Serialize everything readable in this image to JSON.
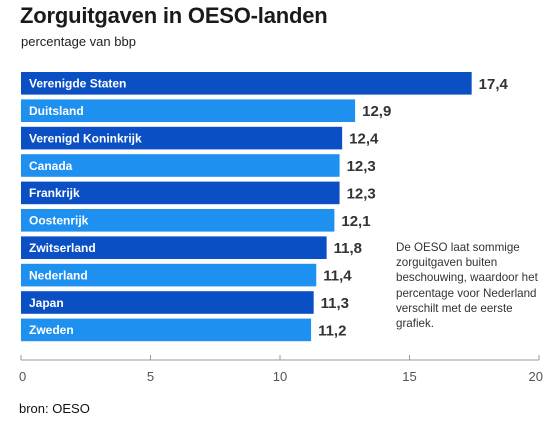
{
  "title": "Zorguitgaven in OESO-landen",
  "subtitle": "percentage van bbp",
  "annotation": "De OESO laat sommige zorguitgaven buiten beschouwing, waardoor het percentage voor Nederland verschilt met de eerste grafiek.",
  "source": "bron: OESO",
  "colors": {
    "dark": "#0a4fc4",
    "light": "#1e90f0",
    "label_text": "#ffffff",
    "value_text": "#333333",
    "axis": "#999999"
  },
  "chart_data": {
    "type": "bar",
    "orientation": "horizontal",
    "categories": [
      "Verenigde Staten",
      "Duitsland",
      "Verenigd Koninkrijk",
      "Canada",
      "Frankrijk",
      "Oostenrijk",
      "Zwitserland",
      "Nederland",
      "Japan",
      "Zweden"
    ],
    "values": [
      17.4,
      12.9,
      12.4,
      12.3,
      12.3,
      12.1,
      11.8,
      11.4,
      11.3,
      11.2
    ],
    "value_labels": [
      "17,4",
      "12,9",
      "12,4",
      "12,3",
      "12,3",
      "12,1",
      "11,8",
      "11,4",
      "11,3",
      "11,2"
    ],
    "bar_color_pattern": [
      "dark",
      "light",
      "dark",
      "light",
      "dark",
      "light",
      "dark",
      "light",
      "dark",
      "light"
    ],
    "xlim": [
      0,
      20
    ],
    "xticks": [
      0,
      5,
      10,
      15,
      20
    ],
    "xtick_labels": [
      "0",
      "5",
      "10",
      "15",
      "20"
    ],
    "grid": false
  }
}
